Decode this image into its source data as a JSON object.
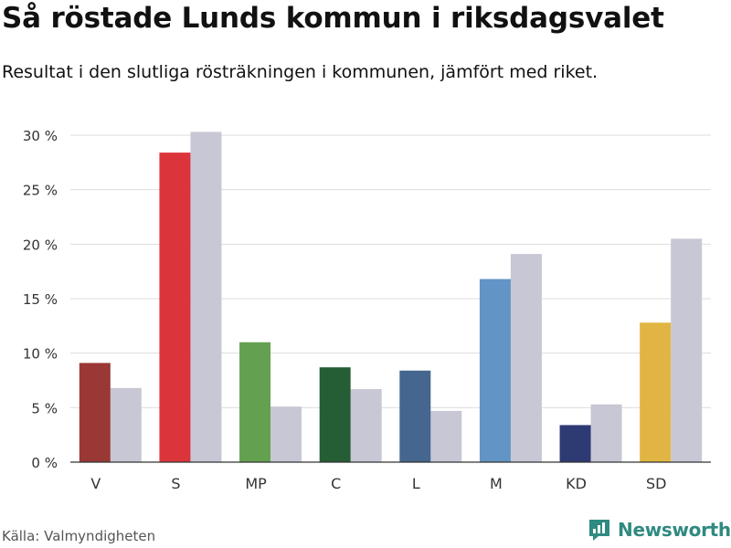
{
  "header": {
    "title": "Så röstade Lunds kommun i riksdagsvalet",
    "subtitle": "Resultat i den slutliga rösträkningen i kommunen, jämfört med riket."
  },
  "footer": {
    "source": "Källa: Valmyndigheten",
    "brand": "Newsworthy",
    "brand_icon": "bar-chart-icon"
  },
  "chart_data": {
    "type": "bar",
    "title": "",
    "xlabel": "",
    "ylabel": "",
    "ylim": [
      0,
      30
    ],
    "yticks": [
      0,
      5,
      10,
      15,
      20,
      25,
      30
    ],
    "ytick_labels": [
      "0 %",
      "5 %",
      "10 %",
      "15 %",
      "20 %",
      "25 %",
      "30 %"
    ],
    "grid": true,
    "categories": [
      "V",
      "S",
      "MP",
      "C",
      "L",
      "M",
      "KD",
      "SD"
    ],
    "series": [
      {
        "values": [
          9.1,
          28.4,
          11.0,
          8.7,
          8.4,
          16.8,
          3.4,
          12.8
        ],
        "colors": [
          "#993835",
          "#dc343b",
          "#63a04f",
          "#255e35",
          "#44668f",
          "#6294c5",
          "#2e3a74",
          "#e1b543"
        ]
      },
      {
        "values": [
          6.8,
          30.3,
          5.1,
          6.7,
          4.7,
          19.1,
          5.3,
          20.5
        ],
        "color": "#c8c7d5"
      }
    ]
  }
}
